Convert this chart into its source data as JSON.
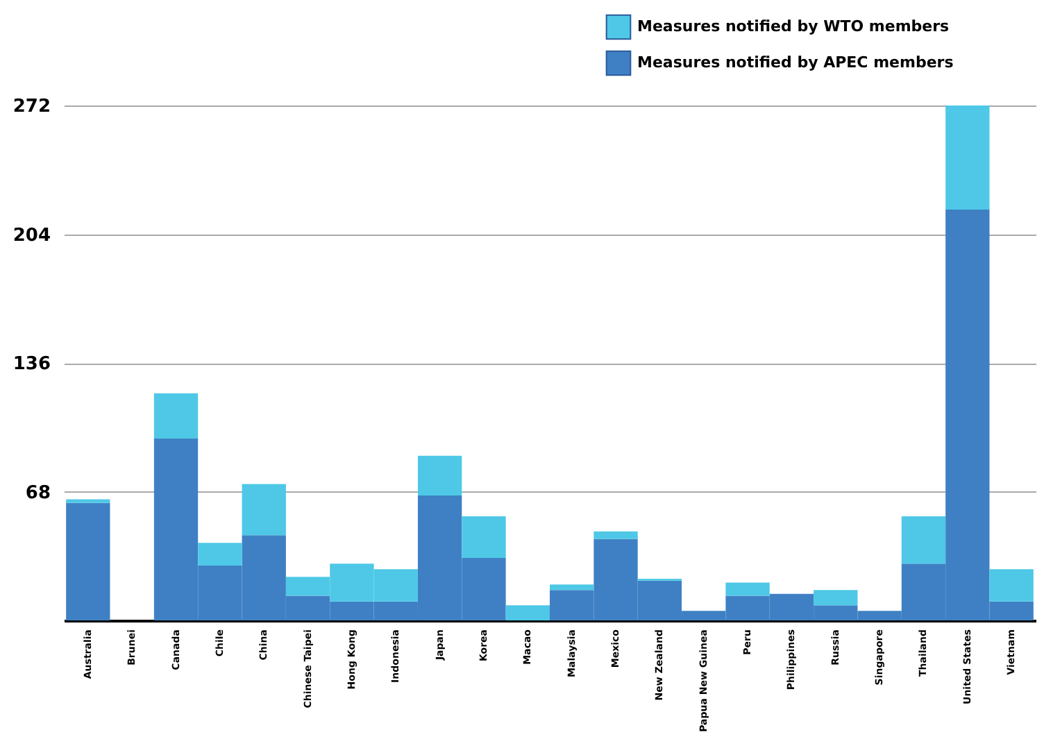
{
  "chart_data": {
    "type": "bar",
    "stacked": true,
    "categories": [
      "Australia",
      "Brunei",
      "Canada",
      "Chile",
      "China",
      "Chinese Taipei",
      "Hong Kong",
      "Indonesia",
      "Japan",
      "Korea",
      "Macao",
      "Malaysia",
      "Mexico",
      "New Zealand",
      "Papua New Guinea",
      "Peru",
      "Philippines",
      "Russia",
      "Singapore",
      "Thailand",
      "United States",
      "Vietnam"
    ],
    "series": [
      {
        "name": "Measures notified by APEC members",
        "color": "#3f80c4",
        "values": [
          62,
          0,
          96,
          29,
          45,
          13,
          10,
          10,
          66,
          33,
          0,
          16,
          43,
          21,
          5,
          13,
          14,
          8,
          5,
          30,
          217,
          10
        ]
      },
      {
        "name": "Measures notified by WTO members",
        "color": "#4ec8e6",
        "values": [
          2,
          0,
          24,
          12,
          27,
          10,
          20,
          17,
          21,
          22,
          8,
          3,
          4,
          1,
          0,
          7,
          0,
          8,
          0,
          25,
          55,
          17
        ]
      }
    ],
    "ylim": [
      0,
      272
    ],
    "yticks": [
      68,
      136,
      204,
      272
    ],
    "grid": "y",
    "legend": "top right"
  }
}
